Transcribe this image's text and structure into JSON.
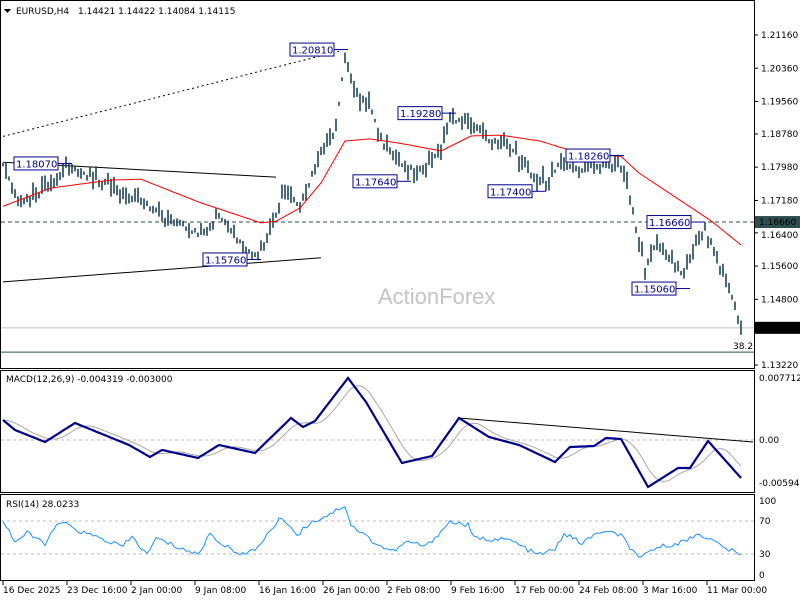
{
  "header": {
    "symbol": "EURUSD,H4",
    "ohlc": "1.14421 1.14422 1.14084 1.14115"
  },
  "watermark": "ActionForex",
  "colors": {
    "bars": "#1c4457",
    "ma": "#ff0000",
    "macd": "#00008b",
    "signal": "#a9a9a9",
    "rsi": "#1e90ff",
    "label_border": "#00008b"
  },
  "chart_data": [
    {
      "type": "line",
      "name": "price",
      "title": "EURUSD,H4",
      "y_ticks": [
        "1.21160",
        "1.20360",
        "1.19560",
        "1.18780",
        "1.17980",
        "1.17180",
        "1.16400",
        "1.15600",
        "1.14800",
        "1.13220"
      ],
      "ylim": [
        1.1322,
        1.2116
      ],
      "current_price": "1.14115",
      "horizontal_level": "1.16660",
      "fib_label": "38.2",
      "fib_price": 1.1353,
      "close_path": [
        [
          0,
          1.1803
        ],
        [
          6,
          1.1707
        ],
        [
          12,
          1.173
        ],
        [
          21,
          1.18
        ],
        [
          32,
          1.1767
        ],
        [
          46,
          1.1719
        ],
        [
          52,
          1.1683
        ],
        [
          66,
          1.1635
        ],
        [
          72,
          1.1683
        ],
        [
          81,
          1.1599
        ],
        [
          85,
          1.1587
        ],
        [
          89,
          1.1635
        ],
        [
          93,
          1.173
        ],
        [
          99,
          1.1707
        ],
        [
          102,
          1.1755
        ],
        [
          106,
          1.184
        ],
        [
          111,
          1.1887
        ],
        [
          114,
          1.2068
        ],
        [
          117,
          1.1984
        ],
        [
          122,
          1.196
        ],
        [
          126,
          1.1863
        ],
        [
          132,
          1.18
        ],
        [
          139,
          1.179
        ],
        [
          146,
          1.184
        ],
        [
          149,
          1.1916
        ],
        [
          156,
          1.1899
        ],
        [
          162,
          1.1863
        ],
        [
          169,
          1.185
        ],
        [
          176,
          1.178
        ],
        [
          181,
          1.1755
        ],
        [
          186,
          1.1815
        ],
        [
          192,
          1.179
        ],
        [
          199,
          1.18
        ],
        [
          206,
          1.18
        ],
        [
          209,
          1.172
        ],
        [
          212,
          1.162
        ],
        [
          214,
          1.155
        ],
        [
          217,
          1.161
        ],
        [
          222,
          1.158
        ],
        [
          227,
          1.154
        ],
        [
          231,
          1.162
        ],
        [
          234,
          1.1647
        ],
        [
          239,
          1.156
        ],
        [
          242,
          1.1503
        ],
        [
          246,
          1.1412
        ]
      ],
      "ma_path": [
        [
          0,
          1.1704
        ],
        [
          16,
          1.1748
        ],
        [
          36,
          1.1767
        ],
        [
          46,
          1.1769
        ],
        [
          66,
          1.1712
        ],
        [
          86,
          1.1664
        ],
        [
          91,
          1.1668
        ],
        [
          99,
          1.17
        ],
        [
          106,
          1.176
        ],
        [
          114,
          1.1861
        ],
        [
          122,
          1.1866
        ],
        [
          132,
          1.1856
        ],
        [
          146,
          1.1837
        ],
        [
          156,
          1.1873
        ],
        [
          166,
          1.1875
        ],
        [
          179,
          1.1861
        ],
        [
          192,
          1.1832
        ],
        [
          206,
          1.1824
        ],
        [
          212,
          1.1784
        ],
        [
          226,
          1.1717
        ],
        [
          236,
          1.1669
        ],
        [
          246,
          1.1611
        ]
      ],
      "trendlines": [
        {
          "style": "solid",
          "from": [
            0,
            1.181
          ],
          "to": [
            91,
            1.1774
          ]
        },
        {
          "style": "solid",
          "from": [
            0,
            1.1522
          ],
          "to": [
            106,
            1.158
          ]
        },
        {
          "style": "dotted",
          "from": [
            0,
            1.1872
          ],
          "to": [
            112,
            1.2077
          ]
        }
      ],
      "pivot_labels": [
        {
          "text": "1.20810",
          "bar": 113,
          "price": 1.2081,
          "side": "left"
        },
        {
          "text": "1.18070",
          "bar": 21,
          "price": 1.1807,
          "side": "left"
        },
        {
          "text": "1.15760",
          "bar": 84,
          "price": 1.1576,
          "side": "left"
        },
        {
          "text": "1.19280",
          "bar": 149,
          "price": 1.1928,
          "side": "left"
        },
        {
          "text": "1.17640",
          "bar": 134,
          "price": 1.1764,
          "side": "left"
        },
        {
          "text": "1.17400",
          "bar": 179,
          "price": 1.174,
          "side": "left"
        },
        {
          "text": "1.18260",
          "bar": 205,
          "price": 1.1826,
          "side": "left"
        },
        {
          "text": "1.16660",
          "bar": 232,
          "price": 1.1666,
          "side": "left"
        },
        {
          "text": "1.15060",
          "bar": 227,
          "price": 1.1506,
          "side": "left"
        }
      ]
    },
    {
      "type": "line",
      "name": "macd",
      "title": "MACD(12,26,9) -0.004319 -0.003000",
      "y_ticks": [
        "0.007712",
        "0.00",
        "-0.005944"
      ],
      "ylim": [
        -0.005944,
        0.007712
      ],
      "macd_path": [
        [
          0,
          0.00245
        ],
        [
          4,
          0.00122
        ],
        [
          14,
          -0.00024
        ],
        [
          24,
          0.00208
        ],
        [
          42,
          -0.00061
        ],
        [
          49,
          -0.00208
        ],
        [
          53,
          -0.00122
        ],
        [
          65,
          -0.0022
        ],
        [
          72,
          -0.00061
        ],
        [
          84,
          -0.00159
        ],
        [
          96,
          0.00269
        ],
        [
          100,
          0.00159
        ],
        [
          104,
          0.00233
        ],
        [
          115,
          0.00759
        ],
        [
          121,
          0.00465
        ],
        [
          133,
          -0.00282
        ],
        [
          143,
          -0.00196
        ],
        [
          152,
          0.00269
        ],
        [
          162,
          0.00037
        ],
        [
          172,
          -0.00061
        ],
        [
          184,
          -0.00269
        ],
        [
          189,
          -0.00086
        ],
        [
          197,
          -0.00073
        ],
        [
          201,
          0.00024
        ],
        [
          206,
          0.00012
        ],
        [
          215,
          -0.00575
        ],
        [
          225,
          -0.00343
        ],
        [
          229,
          -0.00343
        ],
        [
          235,
          -0.00012
        ],
        [
          246,
          -0.00465
        ]
      ],
      "signal_lag_bars": 4,
      "trendline": {
        "from": [
          152,
          0.00269
        ],
        "to": [
          250,
          -0.00024
        ]
      }
    },
    {
      "type": "line",
      "name": "rsi",
      "title": "RSI(14) 28.0233",
      "y_ticks": [
        "100",
        "70",
        "30",
        "0"
      ],
      "ylim": [
        0,
        100
      ],
      "levels": [
        70,
        30
      ],
      "rsi_path": [
        [
          0,
          71
        ],
        [
          4,
          45
        ],
        [
          8,
          55
        ],
        [
          14,
          43
        ],
        [
          19,
          69
        ],
        [
          26,
          57
        ],
        [
          40,
          39
        ],
        [
          43,
          51
        ],
        [
          48,
          29
        ],
        [
          51,
          49
        ],
        [
          65,
          29
        ],
        [
          69,
          55
        ],
        [
          74,
          39
        ],
        [
          81,
          29
        ],
        [
          84,
          35
        ],
        [
          87,
          49
        ],
        [
          93,
          75
        ],
        [
          98,
          53
        ],
        [
          102,
          67
        ],
        [
          108,
          77
        ],
        [
          114,
          89
        ],
        [
          116,
          65
        ],
        [
          125,
          41
        ],
        [
          130,
          33
        ],
        [
          135,
          45
        ],
        [
          141,
          39
        ],
        [
          149,
          69
        ],
        [
          155,
          65
        ],
        [
          157,
          49
        ],
        [
          169,
          47
        ],
        [
          178,
          29
        ],
        [
          184,
          35
        ],
        [
          187,
          55
        ],
        [
          193,
          43
        ],
        [
          199,
          57
        ],
        [
          206,
          53
        ],
        [
          212,
          23
        ],
        [
          217,
          37
        ],
        [
          227,
          45
        ],
        [
          232,
          55
        ],
        [
          240,
          39
        ],
        [
          246,
          28
        ]
      ]
    }
  ],
  "x_axis": {
    "labels": [
      "16 Dec 2025",
      "23 Dec 16:00",
      "2 Jan 00:00",
      "9 Jan 08:00",
      "16 Jan 16:00",
      "26 Jan 00:00",
      "2 Feb 08:00",
      "9 Feb 16:00",
      "17 Feb 00:00",
      "24 Feb 08:00",
      "3 Mar 16:00",
      "11 Mar 00:00"
    ]
  }
}
